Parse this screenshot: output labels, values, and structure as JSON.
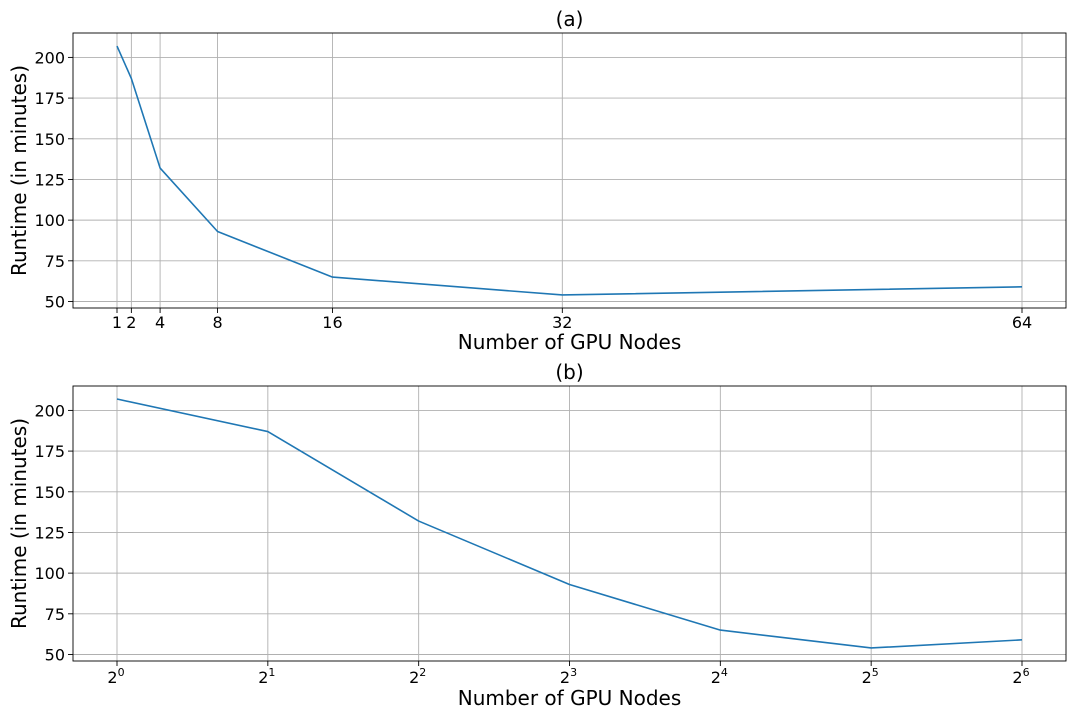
{
  "chart_data": [
    {
      "type": "line",
      "title": "(a)",
      "xlabel": "Number of GPU Nodes",
      "ylabel": "Runtime (in minutes)",
      "x_scale": "linear",
      "x": [
        1,
        2,
        4,
        8,
        16,
        32,
        64
      ],
      "series": [
        {
          "values": [
            207,
            187,
            132,
            93,
            65,
            54,
            59
          ],
          "color": "#1f77b4"
        }
      ],
      "xticks": [
        1,
        2,
        4,
        8,
        16,
        32,
        64
      ],
      "xtick_labels": [
        "1",
        "2",
        "4",
        "8",
        "16",
        "32",
        "64"
      ],
      "yticks": [
        50,
        75,
        100,
        125,
        150,
        175,
        200
      ],
      "ytick_labels": [
        "50",
        "75",
        "100",
        "125",
        "150",
        "175",
        "200"
      ],
      "ylim": [
        46,
        215
      ],
      "grid": true
    },
    {
      "type": "line",
      "title": "(b)",
      "xlabel": "Number of GPU Nodes",
      "ylabel": "Runtime (in minutes)",
      "x_scale": "log2",
      "x": [
        1,
        2,
        4,
        8,
        16,
        32,
        64
      ],
      "series": [
        {
          "values": [
            207,
            187,
            132,
            93,
            65,
            54,
            59
          ],
          "color": "#1f77b4"
        }
      ],
      "xticks": [
        1,
        2,
        4,
        8,
        16,
        32,
        64
      ],
      "xtick_labels": [
        {
          "base": "2",
          "exp": "0"
        },
        {
          "base": "2",
          "exp": "1"
        },
        {
          "base": "2",
          "exp": "2"
        },
        {
          "base": "2",
          "exp": "3"
        },
        {
          "base": "2",
          "exp": "4"
        },
        {
          "base": "2",
          "exp": "5"
        },
        {
          "base": "2",
          "exp": "6"
        }
      ],
      "yticks": [
        50,
        75,
        100,
        125,
        150,
        175,
        200
      ],
      "ytick_labels": [
        "50",
        "75",
        "100",
        "125",
        "150",
        "175",
        "200"
      ],
      "ylim": [
        46,
        215
      ],
      "grid": true
    }
  ]
}
